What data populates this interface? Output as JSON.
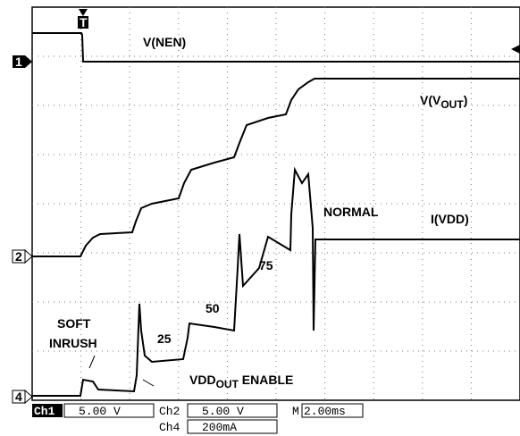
{
  "traces": {
    "nen": "V(NEN)",
    "vout_pre": "V(V",
    "vout_sub": "OUT",
    "vout_post": ")",
    "ivdd": "I(VDD)"
  },
  "annotations": {
    "normal": "NORMAL",
    "step75": "75",
    "step50": "50",
    "step25": "25",
    "soft": "SOFT",
    "inrush": "INRUSH",
    "enable_pre": "VDD",
    "enable_sub": "OUT",
    "enable_post": " ENABLE"
  },
  "markers": {
    "ch1": "1",
    "ch2": "2",
    "ch4": "4",
    "trigger": "T"
  },
  "status": {
    "ch1_label": "Ch1",
    "ch1_scale": "5.00 V",
    "ch2_label": "Ch2",
    "ch2_scale": "5.00 V",
    "time_label": "M",
    "time_scale": "2.00ms",
    "ch4_label": "Ch4",
    "ch4_scale": "200mA"
  }
}
